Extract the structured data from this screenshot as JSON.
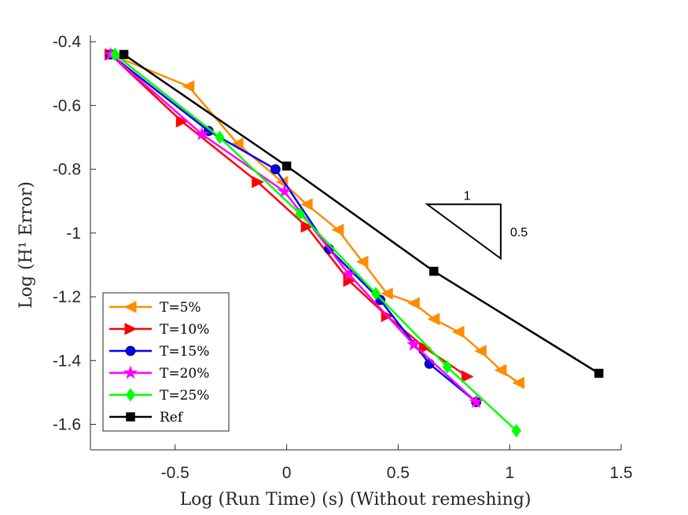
{
  "chart_data": {
    "type": "line",
    "xlabel": "Log (Run Time) (s) (Without remeshing)",
    "ylabel": "Log (H¹ Error)",
    "xlim": [
      -0.88,
      1.5
    ],
    "ylim": [
      -1.68,
      -0.38
    ],
    "x_ticks": [
      -0.5,
      0,
      0.5,
      1,
      1.5
    ],
    "x_tick_labels": [
      "-0.5",
      "0",
      "0.5",
      "1",
      "1.5"
    ],
    "y_ticks": [
      -0.4,
      -0.6,
      -0.8,
      -1,
      -1.2,
      -1.4,
      -1.6
    ],
    "y_tick_labels": [
      "-0.4",
      "-0.6",
      "-0.8",
      "-1",
      "-1.2",
      "-1.4",
      "-1.6"
    ],
    "legend_position": "bottom-left",
    "series": [
      {
        "name": "T=5%",
        "color": "#ff8c00",
        "marker": "triangle-left",
        "x": [
          -0.79,
          -0.44,
          -0.22,
          -0.02,
          0.09,
          0.23,
          0.34,
          0.45,
          0.57,
          0.66,
          0.77,
          0.87,
          0.96,
          1.04
        ],
        "y": [
          -0.44,
          -0.54,
          -0.72,
          -0.84,
          -0.91,
          -0.99,
          -1.09,
          -1.19,
          -1.22,
          -1.27,
          -1.31,
          -1.37,
          -1.43,
          -1.47
        ]
      },
      {
        "name": "T=10%",
        "color": "#ff0000",
        "marker": "triangle-right",
        "x": [
          -0.79,
          -0.47,
          -0.13,
          0.09,
          0.28,
          0.45,
          0.62,
          0.81
        ],
        "y": [
          -0.44,
          -0.65,
          -0.84,
          -0.98,
          -1.15,
          -1.26,
          -1.36,
          -1.45
        ]
      },
      {
        "name": "T=15%",
        "color": "#0000ff",
        "marker": "circle",
        "x": [
          -0.79,
          -0.35,
          -0.05,
          0.19,
          0.42,
          0.64,
          0.85
        ],
        "y": [
          -0.44,
          -0.68,
          -0.8,
          -1.05,
          -1.21,
          -1.41,
          -1.53
        ]
      },
      {
        "name": "T=20%",
        "color": "#ff00ff",
        "marker": "star",
        "x": [
          -0.79,
          -0.38,
          -0.01,
          0.28,
          0.57,
          0.85
        ],
        "y": [
          -0.44,
          -0.69,
          -0.87,
          -1.13,
          -1.35,
          -1.53
        ]
      },
      {
        "name": "T=25%",
        "color": "#00ff00",
        "marker": "diamond",
        "x": [
          -0.77,
          -0.3,
          0.06,
          0.4,
          0.72,
          1.03
        ],
        "y": [
          -0.44,
          -0.7,
          -0.94,
          -1.19,
          -1.42,
          -1.62
        ]
      },
      {
        "name": "Ref",
        "color": "#000000",
        "marker": "square",
        "x": [
          -0.73,
          0.0,
          0.66,
          1.4
        ],
        "y": [
          -0.44,
          -0.79,
          -1.12,
          -1.44
        ]
      }
    ],
    "slope_triangle": {
      "run_label": "1",
      "rise_label": "0.5",
      "corner_x": 0.96,
      "corner_y": -0.91,
      "left_x": 0.63,
      "bottom_y": -1.08
    }
  }
}
